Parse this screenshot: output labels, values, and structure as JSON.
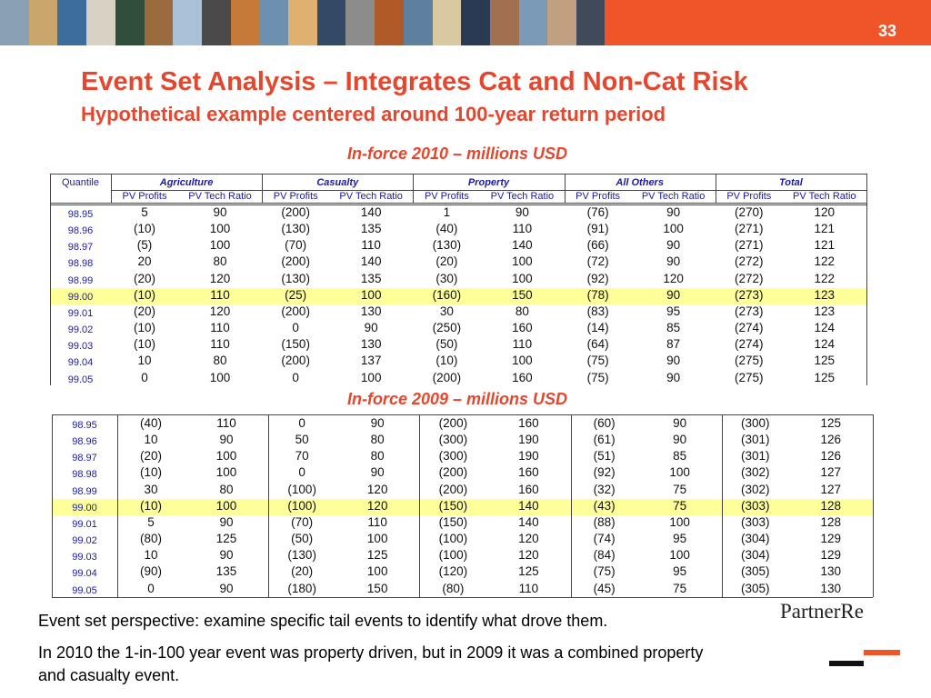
{
  "header": {
    "page_number": "33",
    "title": "Event Set Analysis – Integrates Cat and Non-Cat Risk",
    "subtitle": "Hypothetical example centered around 100-year return period"
  },
  "table1": {
    "caption": "In-force 2010 – millions USD",
    "quantile_header": "Quantile",
    "groups": [
      "Agriculture",
      "Casualty",
      "Property",
      "All Others",
      "Total"
    ],
    "subheaders": [
      "PV Profits",
      "PV Tech Ratio",
      "PV Profits",
      "PV Tech Ratio",
      "PV Profits",
      "PV Tech Ratio",
      "PV Profits",
      "PV Tech Ratio",
      "PV Profits",
      "PV Tech Ratio"
    ],
    "rows": [
      [
        "98.95",
        "5",
        "90",
        "(200)",
        "140",
        "1",
        "90",
        "(76)",
        "90",
        "(270)",
        "120"
      ],
      [
        "98.96",
        "(10)",
        "100",
        "(130)",
        "135",
        "(40)",
        "110",
        "(91)",
        "100",
        "(271)",
        "121"
      ],
      [
        "98.97",
        "(5)",
        "100",
        "(70)",
        "110",
        "(130)",
        "140",
        "(66)",
        "90",
        "(271)",
        "121"
      ],
      [
        "98.98",
        "20",
        "80",
        "(200)",
        "140",
        "(20)",
        "100",
        "(72)",
        "90",
        "(272)",
        "122"
      ],
      [
        "98.99",
        "(20)",
        "120",
        "(130)",
        "135",
        "(30)",
        "100",
        "(92)",
        "120",
        "(272)",
        "122"
      ],
      [
        "99.00",
        "(10)",
        "110",
        "(25)",
        "100",
        "(160)",
        "150",
        "(78)",
        "90",
        "(273)",
        "123"
      ],
      [
        "99.01",
        "(20)",
        "120",
        "(200)",
        "130",
        "30",
        "80",
        "(83)",
        "95",
        "(273)",
        "123"
      ],
      [
        "99.02",
        "(10)",
        "110",
        "0",
        "90",
        "(250)",
        "160",
        "(14)",
        "85",
        "(274)",
        "124"
      ],
      [
        "99.03",
        "(10)",
        "110",
        "(150)",
        "130",
        "(50)",
        "110",
        "(64)",
        "87",
        "(274)",
        "124"
      ],
      [
        "99.04",
        "10",
        "80",
        "(200)",
        "137",
        "(10)",
        "100",
        "(75)",
        "90",
        "(275)",
        "125"
      ],
      [
        "99.05",
        "0",
        "100",
        "0",
        "100",
        "(200)",
        "160",
        "(75)",
        "90",
        "(275)",
        "125"
      ]
    ]
  },
  "table2": {
    "caption": "In-force 2009 – millions USD",
    "rows": [
      [
        "98.95",
        "(40)",
        "110",
        "0",
        "90",
        "(200)",
        "160",
        "(60)",
        "90",
        "(300)",
        "125"
      ],
      [
        "98.96",
        "10",
        "90",
        "50",
        "80",
        "(300)",
        "190",
        "(61)",
        "90",
        "(301)",
        "126"
      ],
      [
        "98.97",
        "(20)",
        "100",
        "70",
        "80",
        "(300)",
        "190",
        "(51)",
        "85",
        "(301)",
        "126"
      ],
      [
        "98.98",
        "(10)",
        "100",
        "0",
        "90",
        "(200)",
        "160",
        "(92)",
        "100",
        "(302)",
        "127"
      ],
      [
        "98.99",
        "30",
        "80",
        "(100)",
        "120",
        "(200)",
        "160",
        "(32)",
        "75",
        "(302)",
        "127"
      ],
      [
        "99.00",
        "(10)",
        "100",
        "(100)",
        "120",
        "(150)",
        "140",
        "(43)",
        "75",
        "(303)",
        "128"
      ],
      [
        "99.01",
        "5",
        "90",
        "(70)",
        "110",
        "(150)",
        "140",
        "(88)",
        "100",
        "(303)",
        "128"
      ],
      [
        "99.02",
        "(80)",
        "125",
        "(50)",
        "100",
        "(100)",
        "120",
        "(74)",
        "95",
        "(304)",
        "129"
      ],
      [
        "99.03",
        "10",
        "90",
        "(130)",
        "125",
        "(100)",
        "120",
        "(84)",
        "100",
        "(304)",
        "129"
      ],
      [
        "99.04",
        "(90)",
        "135",
        "(20)",
        "100",
        "(120)",
        "125",
        "(75)",
        "95",
        "(305)",
        "130"
      ],
      [
        "99.05",
        "0",
        "90",
        "(180)",
        "150",
        "(80)",
        "110",
        "(45)",
        "75",
        "(305)",
        "130"
      ]
    ]
  },
  "notes": [
    "Event set perspective: examine specific tail events to identify what drove them.",
    "In 2010 the 1-in-100 year event was property driven, but in 2009 it was a combined property and casualty event."
  ],
  "logo": "PartnerRe"
}
